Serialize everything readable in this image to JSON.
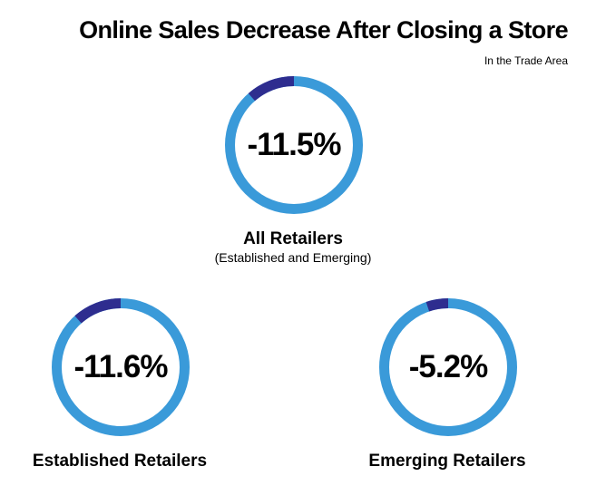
{
  "chart_data": {
    "type": "donut",
    "title": "Online Sales Decrease After Closing a Store",
    "subtitle": "In the Trade Area",
    "colors": {
      "track": "#3a9ad9",
      "value": "#2e2d8f"
    },
    "rings": [
      {
        "label": "All Retailers",
        "note": "(Established and Emerging)",
        "value": -11.5,
        "display": "-11.5%"
      },
      {
        "label": "Established Retailers",
        "value": -11.6,
        "display": "-11.6%"
      },
      {
        "label": "Emerging Retailers",
        "value": -5.2,
        "display": "-5.2%"
      }
    ]
  }
}
